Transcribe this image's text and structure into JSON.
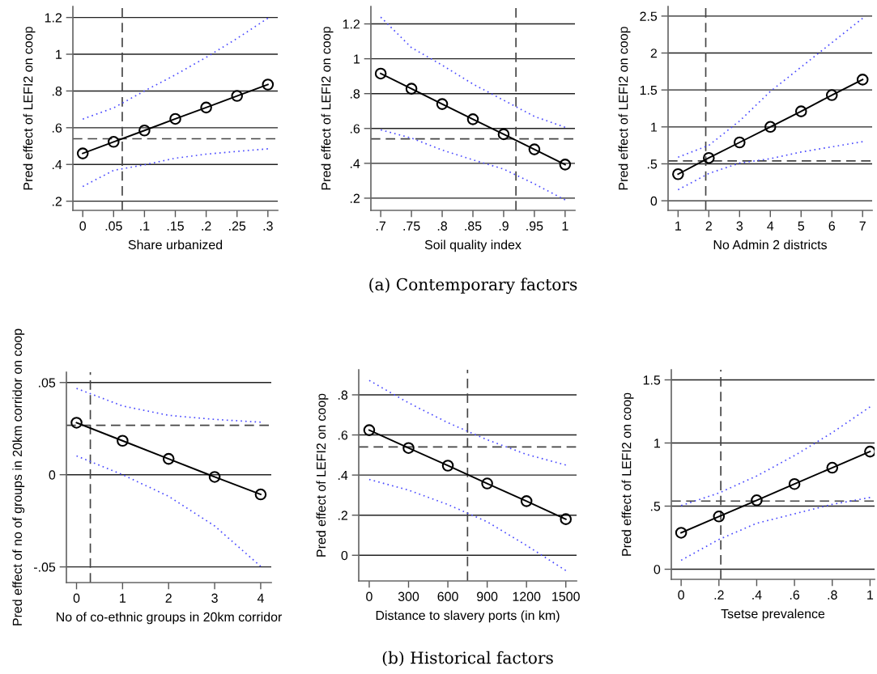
{
  "chart_data": [
    {
      "type": "line",
      "xlabel": "Share urbanized",
      "ylabel": "Pred effect of LEFI2 on coop",
      "x": [
        0,
        0.05,
        0.1,
        0.15,
        0.2,
        0.25,
        0.3
      ],
      "series": [
        {
          "color": "#000000",
          "marker": "circle",
          "line_style": "solid",
          "values": [
            0.46,
            0.523,
            0.585,
            0.648,
            0.71,
            0.773,
            0.835
          ]
        },
        {
          "color": "#4a4aff",
          "marker": "none",
          "line_style": "dotted",
          "values": [
            0.647,
            0.708,
            0.8,
            0.888,
            0.983,
            1.086,
            1.196
          ]
        },
        {
          "color": "#4a4aff",
          "marker": "none",
          "line_style": "dotted",
          "values": [
            0.28,
            0.368,
            0.398,
            0.434,
            0.456,
            0.471,
            0.485
          ]
        }
      ],
      "xlim": [
        -0.016,
        0.316
      ],
      "ylim": [
        0.15,
        1.26
      ],
      "xticks": [
        0,
        {
          "value": 0.05,
          "label": ".05"
        },
        {
          "value": 0.1,
          "label": ".1"
        },
        {
          "value": 0.15,
          "label": ".15"
        },
        {
          "value": 0.2,
          "label": ".2"
        },
        {
          "value": 0.25,
          "label": ".25"
        },
        {
          "value": 0.3,
          "label": ".3"
        }
      ],
      "yticks": [
        {
          "value": 0.2,
          "label": ".2"
        },
        {
          "value": 0.4,
          "label": ".4"
        },
        {
          "value": 0.6,
          "label": ".6"
        },
        {
          "value": 0.8,
          "label": ".8"
        },
        1,
        1.2
      ],
      "ref_lines": [
        {
          "axis": "x",
          "value": 0.064,
          "color": "#444444",
          "line_style": "dashed"
        },
        {
          "axis": "y",
          "value": 0.54,
          "color": "#444444",
          "line_style": "dashed"
        }
      ],
      "grid": "y"
    },
    {
      "type": "line",
      "xlabel": "Soil quality index",
      "ylabel": "Pred effect of LEFI2 on coop",
      "x": [
        0.7,
        0.75,
        0.8,
        0.85,
        0.9,
        0.95,
        1
      ],
      "series": [
        {
          "color": "#000000",
          "marker": "circle",
          "line_style": "solid",
          "values": [
            0.915,
            0.828,
            0.74,
            0.653,
            0.567,
            0.48,
            0.393
          ]
        },
        {
          "color": "#4a4aff",
          "marker": "none",
          "line_style": "dotted",
          "values": [
            1.239,
            1.064,
            0.963,
            0.855,
            0.762,
            0.669,
            0.607
          ]
        },
        {
          "color": "#4a4aff",
          "marker": "none",
          "line_style": "dotted",
          "values": [
            0.592,
            0.545,
            0.476,
            0.42,
            0.367,
            0.282,
            0.19
          ]
        }
      ],
      "xlim": [
        0.684,
        1.016
      ],
      "ylim": [
        0.13,
        1.3
      ],
      "xticks": [
        {
          "value": 0.7,
          "label": ".7"
        },
        {
          "value": 0.75,
          "label": ".75"
        },
        {
          "value": 0.8,
          "label": ".8"
        },
        {
          "value": 0.85,
          "label": ".85"
        },
        {
          "value": 0.9,
          "label": ".9"
        },
        {
          "value": 0.95,
          "label": ".95"
        },
        1
      ],
      "yticks": [
        {
          "value": 0.2,
          "label": ".2"
        },
        {
          "value": 0.4,
          "label": ".4"
        },
        {
          "value": 0.6,
          "label": ".6"
        },
        {
          "value": 0.8,
          "label": ".8"
        },
        1,
        1.2
      ],
      "ref_lines": [
        {
          "axis": "x",
          "value": 0.92,
          "color": "#444444",
          "line_style": "dashed"
        },
        {
          "axis": "y",
          "value": 0.54,
          "color": "#444444",
          "line_style": "dashed"
        }
      ],
      "grid": "y",
      "annotations": [
        "(a) Contemporary factors"
      ]
    },
    {
      "type": "line",
      "xlabel": "No Admin 2 districts",
      "ylabel": "Pred effect of LEFI2 on coop",
      "x": [
        1,
        2,
        3,
        4,
        5,
        6,
        7
      ],
      "series": [
        {
          "color": "#000000",
          "marker": "circle",
          "line_style": "solid",
          "values": [
            0.36,
            0.58,
            0.79,
            1.0,
            1.21,
            1.43,
            1.64
          ]
        },
        {
          "color": "#4a4aff",
          "marker": "none",
          "line_style": "dotted",
          "values": [
            0.59,
            0.75,
            1.08,
            1.48,
            1.81,
            2.14,
            2.47
          ]
        },
        {
          "color": "#4a4aff",
          "marker": "none",
          "line_style": "dotted",
          "values": [
            0.15,
            0.37,
            0.51,
            0.57,
            0.66,
            0.73,
            0.8
          ]
        }
      ],
      "xlim": [
        0.675,
        7.31
      ],
      "ylim": [
        -0.13,
        2.63
      ],
      "xticks": [
        1,
        2,
        3,
        4,
        5,
        6,
        7
      ],
      "yticks": [
        0,
        {
          "value": 0.5,
          "label": ".5"
        },
        1,
        1.5,
        2,
        2.5
      ],
      "ref_lines": [
        {
          "axis": "x",
          "value": 1.9,
          "color": "#444444",
          "line_style": "dashed"
        },
        {
          "axis": "y",
          "value": 0.54,
          "color": "#444444",
          "line_style": "dashed"
        }
      ],
      "grid": "y"
    },
    {
      "type": "line",
      "xlabel": "No of co-ethnic groups in 20km corridor",
      "ylabel": "Pred effect of no of groups in 20km corridor on coop",
      "x": [
        0,
        1,
        2,
        3,
        4
      ],
      "series": [
        {
          "color": "#000000",
          "marker": "circle",
          "line_style": "solid",
          "values": [
            0.0282,
            0.0184,
            0.0086,
            -0.0012,
            -0.0107
          ]
        },
        {
          "color": "#4a4aff",
          "marker": "none",
          "line_style": "dotted",
          "values": [
            0.0468,
            0.0373,
            0.0322,
            0.03,
            0.0285
          ]
        },
        {
          "color": "#4a4aff",
          "marker": "none",
          "line_style": "dotted",
          "values": [
            0.0102,
            0.0,
            -0.0117,
            -0.0278,
            -0.0497
          ]
        }
      ],
      "xlim": [
        -0.22,
        4.23
      ],
      "ylim": [
        -0.0585,
        0.0556
      ],
      "xticks": [
        0,
        1,
        2,
        3,
        4
      ],
      "yticks": [
        {
          "value": -0.05,
          "label": "-.05"
        },
        0,
        {
          "value": 0.05,
          "label": ".05"
        }
      ],
      "ref_lines": [
        {
          "axis": "x",
          "value": 0.3,
          "color": "#444444",
          "line_style": "dashed"
        },
        {
          "axis": "y",
          "value": 0.0268,
          "color": "#444444",
          "line_style": "dashed"
        }
      ],
      "grid": "y"
    },
    {
      "type": "line",
      "xlabel": "Distance to slavery ports (in km)",
      "ylabel": "Pred effect of LEFI2 on coop",
      "x": [
        0,
        300,
        600,
        900,
        1200,
        1500
      ],
      "series": [
        {
          "color": "#000000",
          "marker": "circle",
          "line_style": "solid",
          "values": [
            0.624,
            0.535,
            0.447,
            0.358,
            0.27,
            0.18
          ]
        },
        {
          "color": "#4a4aff",
          "marker": "none",
          "line_style": "dotted",
          "values": [
            0.872,
            0.76,
            0.661,
            0.576,
            0.503,
            0.45
          ]
        },
        {
          "color": "#4a4aff",
          "marker": "none",
          "line_style": "dotted",
          "values": [
            0.378,
            0.325,
            0.253,
            0.167,
            0.049,
            -0.076
          ]
        }
      ],
      "xlim": [
        -80,
        1582
      ],
      "ylim": [
        -0.128,
        0.925
      ],
      "xticks": [
        0,
        300,
        600,
        900,
        1200,
        1500
      ],
      "yticks": [
        0,
        {
          "value": 0.2,
          "label": ".2"
        },
        {
          "value": 0.4,
          "label": ".4"
        },
        {
          "value": 0.6,
          "label": ".6"
        },
        {
          "value": 0.8,
          "label": ".8"
        }
      ],
      "ref_lines": [
        {
          "axis": "x",
          "value": 750,
          "color": "#444444",
          "line_style": "dashed"
        },
        {
          "axis": "y",
          "value": 0.54,
          "color": "#444444",
          "line_style": "dashed"
        }
      ],
      "grid": "y",
      "annotations": [
        "(b) Historical factors"
      ]
    },
    {
      "type": "line",
      "xlabel": "Tsetse prevalence",
      "ylabel": "Pred effect of LEFI2 on coop",
      "x": [
        0,
        0.2,
        0.4,
        0.6,
        0.8,
        1
      ],
      "series": [
        {
          "color": "#000000",
          "marker": "circle",
          "line_style": "solid",
          "values": [
            0.289,
            0.418,
            0.546,
            0.675,
            0.804,
            0.932
          ]
        },
        {
          "color": "#4a4aff",
          "marker": "none",
          "line_style": "dotted",
          "values": [
            0.504,
            0.604,
            0.739,
            0.9,
            1.082,
            1.286
          ]
        },
        {
          "color": "#4a4aff",
          "marker": "none",
          "line_style": "dotted",
          "values": [
            0.071,
            0.236,
            0.364,
            0.439,
            0.514,
            0.568
          ]
        }
      ],
      "xlim": [
        -0.052,
        1.024
      ],
      "ylim": [
        -0.08,
        1.58
      ],
      "xticks": [
        0,
        {
          "value": 0.2,
          "label": ".2"
        },
        {
          "value": 0.4,
          "label": ".4"
        },
        {
          "value": 0.6,
          "label": ".6"
        },
        {
          "value": 0.8,
          "label": ".8"
        },
        1
      ],
      "yticks": [
        0,
        {
          "value": 0.5,
          "label": ".5"
        },
        1,
        1.5
      ],
      "ref_lines": [
        {
          "axis": "x",
          "value": 0.21,
          "color": "#444444",
          "line_style": "dashed"
        },
        {
          "axis": "y",
          "value": 0.54,
          "color": "#444444",
          "line_style": "dashed"
        }
      ],
      "grid": "y"
    }
  ]
}
